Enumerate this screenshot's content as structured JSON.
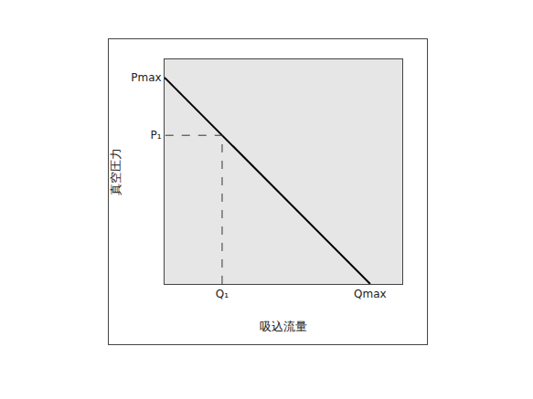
{
  "chart_data": {
    "type": "line",
    "x": [
      0,
      1
    ],
    "values": [
      1,
      0
    ],
    "color": "#000000",
    "x_label": "吸込流量",
    "y_label": "真空圧力",
    "xlim": [
      0,
      1.156
    ],
    "ylim": [
      0,
      1.088
    ],
    "xticks": [
      {
        "value": 0.28,
        "label": "Q₁"
      },
      {
        "value": 1,
        "label": "Qmax"
      }
    ],
    "yticks": [
      {
        "value": 0.72,
        "label": "P₁"
      },
      {
        "value": 1,
        "label": "Pmax"
      }
    ],
    "guide": {
      "x": 0.28,
      "y": 0.72,
      "line_style": "dashed"
    },
    "grid": false
  }
}
